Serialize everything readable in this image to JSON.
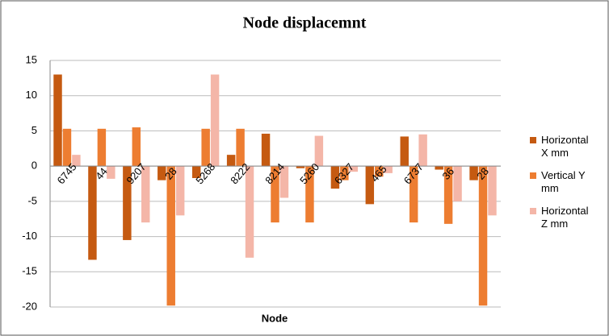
{
  "chart_data": {
    "type": "bar",
    "title": "Node displacemnt",
    "x_label": "Node",
    "categories": [
      "6745",
      "44",
      "9207",
      "28",
      "5268",
      "8222",
      "8214",
      "5260",
      "6327",
      "465",
      "6737",
      "36",
      "28"
    ],
    "series": [
      {
        "name": "Horizontal X mm",
        "color": "#c55a11",
        "values": [
          13,
          -13.3,
          -10.5,
          -2,
          -1.7,
          1.6,
          4.6,
          -0.3,
          -3.2,
          -5.4,
          4.2,
          -0.5,
          -2
        ]
      },
      {
        "name": "Vertical Y mm",
        "color": "#ed7d31",
        "values": [
          5.3,
          5.3,
          5.5,
          -19.8,
          5.3,
          5.3,
          -8,
          -8,
          -2,
          -1.5,
          -8,
          -8.2,
          -19.8
        ]
      },
      {
        "name": "Horizontal Z mm",
        "color": "#f4b6a8",
        "values": [
          1.6,
          -1.8,
          -8,
          -7,
          13,
          -13,
          -4.5,
          4.3,
          -0.8,
          -1,
          4.5,
          -5,
          -7
        ]
      }
    ],
    "ylim": [
      -20,
      15
    ],
    "yticks": [
      -20,
      -15,
      -10,
      -5,
      0,
      5,
      10,
      15
    ],
    "grid": true,
    "legend": "right"
  }
}
